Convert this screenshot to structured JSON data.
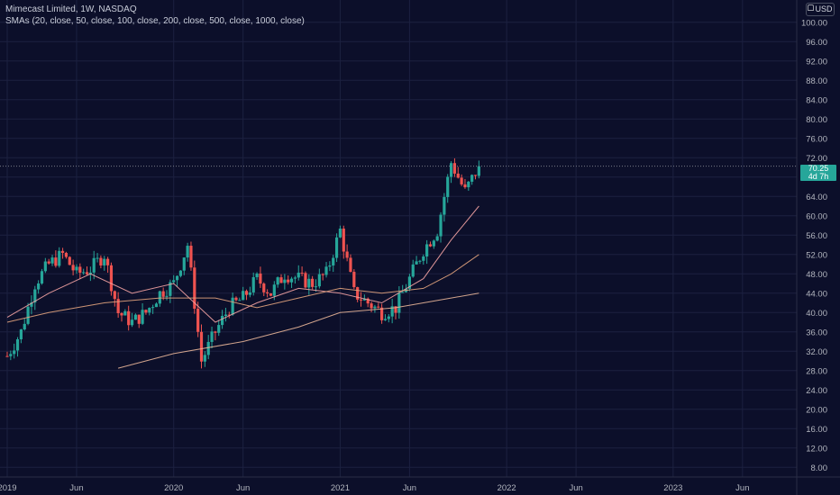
{
  "legend": {
    "title": "Mimecast Limited, 1W, NASDAQ",
    "indicator": "SMAs (20, close, 50, close, 100, close, 200, close, 500, close, 1000, close)"
  },
  "currency_label": "USD",
  "current_price": {
    "price": "70.25",
    "countdown": "4d 7h"
  },
  "colors": {
    "background": "#0c0f2a",
    "grid": "#1c2140",
    "axis_text": "#b2b5be",
    "up": "#26a69a",
    "down": "#ef5350",
    "sma_pink": "#f4a3a3",
    "sma_orange": "#e2a37d",
    "sma_tan": "#e8b598",
    "price_line": "#787b86"
  },
  "chart_data": {
    "type": "candlestick",
    "y_axis": {
      "ticks": [
        "100.00",
        "96.00",
        "92.00",
        "88.00",
        "84.00",
        "80.00",
        "76.00",
        "72.00",
        "68.00",
        "64.00",
        "60.00",
        "56.00",
        "52.00",
        "48.00",
        "44.00",
        "40.00",
        "36.00",
        "32.00",
        "28.00",
        "24.00",
        "20.00",
        "16.00",
        "12.00",
        "8.00"
      ],
      "range": [
        6,
        102
      ]
    },
    "x_axis": {
      "ticks": [
        "2019",
        "Jun",
        "2020",
        "Jun",
        "2021",
        "Jun",
        "2022",
        "Jun",
        "2023",
        "Jun"
      ],
      "tick_dates": [
        "2019-01",
        "2019-06",
        "2020-01",
        "2020-06",
        "2021-01",
        "2021-06",
        "2022-01",
        "2022-06",
        "2023-01",
        "2023-06"
      ],
      "range": [
        "2019-01",
        "2023-09"
      ]
    },
    "last_price": 70.25,
    "series": [
      {
        "name": "price",
        "x": [
          "2019-01",
          "2019-02",
          "2019-03",
          "2019-04",
          "2019-05",
          "2019-06",
          "2019-07",
          "2019-08",
          "2019-09",
          "2019-10",
          "2019-11",
          "2019-12",
          "2020-01",
          "2020-02",
          "2020-03",
          "2020-04",
          "2020-05",
          "2020-06",
          "2020-07",
          "2020-08",
          "2020-09",
          "2020-10",
          "2020-11",
          "2020-12",
          "2021-01",
          "2021-02",
          "2021-03",
          "2021-04",
          "2021-05",
          "2021-06",
          "2021-07",
          "2021-08",
          "2021-09",
          "2021-10",
          "2021-11"
        ],
        "values": [
          31,
          36,
          46,
          50,
          52,
          48,
          49,
          52,
          40,
          38,
          40,
          44,
          46,
          54,
          30,
          36,
          41,
          43,
          47,
          44,
          48,
          47,
          46,
          48,
          57,
          44,
          42,
          40,
          41,
          47,
          53,
          57,
          71,
          65,
          70.25
        ]
      },
      {
        "name": "sma-pink",
        "x": [
          "2019-01",
          "2019-04",
          "2019-07",
          "2019-10",
          "2020-01",
          "2020-04",
          "2020-07",
          "2020-10",
          "2021-01",
          "2021-04",
          "2021-07",
          "2021-09",
          "2021-11"
        ],
        "values": [
          39,
          44,
          48,
          44,
          46,
          38,
          42,
          45,
          44,
          42,
          47,
          55,
          62
        ]
      },
      {
        "name": "sma-orange",
        "x": [
          "2019-01",
          "2019-04",
          "2019-08",
          "2019-12",
          "2020-04",
          "2020-07",
          "2020-10",
          "2021-01",
          "2021-04",
          "2021-07",
          "2021-09",
          "2021-11"
        ],
        "values": [
          38,
          40,
          42,
          43,
          43,
          41,
          43,
          45,
          44,
          45,
          48,
          52
        ]
      },
      {
        "name": "sma-tan",
        "x": [
          "2019-09",
          "2020-01",
          "2020-06",
          "2020-10",
          "2021-01",
          "2021-05",
          "2021-09",
          "2021-11"
        ],
        "values": [
          28.5,
          31.5,
          34,
          37,
          40,
          41,
          43,
          44
        ]
      }
    ]
  }
}
